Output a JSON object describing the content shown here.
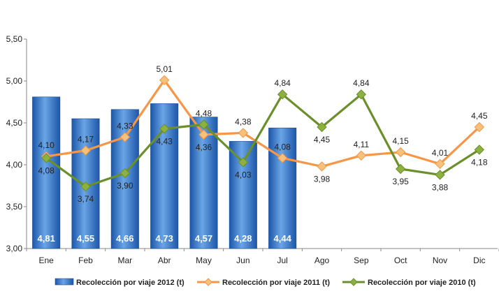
{
  "colors": {
    "bar_light": "#6aa5e6",
    "bar_dark": "#1c56a8",
    "bar_border": "#1a4d96",
    "series_2011": "#f79646",
    "series_2011_marker": "#f6c27b",
    "series_2010": "#6b8f2a",
    "series_2010_marker": "#8db13f",
    "axis": "#8a8a8a",
    "text": "#222222"
  },
  "chart_data": {
    "type": "bar",
    "categories": [
      "Ene",
      "Feb",
      "Mar",
      "Abr",
      "May",
      "Jun",
      "Jul",
      "Ago",
      "Sep",
      "Oct",
      "Nov",
      "Dic"
    ],
    "ylim": [
      3.0,
      5.5
    ],
    "yticks": [
      "3,00",
      "3,50",
      "4,00",
      "4,50",
      "5,00",
      "5,50"
    ],
    "ytick_values": [
      3.0,
      3.5,
      4.0,
      4.5,
      5.0,
      5.5
    ],
    "grid": false,
    "legend_position": "bottom",
    "series": [
      {
        "name": "Recolección por viaje 2012 (t)",
        "type": "bar",
        "values": [
          4.81,
          4.55,
          4.66,
          4.73,
          4.57,
          4.28,
          4.44,
          null,
          null,
          null,
          null,
          null
        ],
        "labels": [
          "4,81",
          "4,55",
          "4,66",
          "4,73",
          "4,57",
          "4,28",
          "4,44",
          "",
          "",
          "",
          "",
          ""
        ]
      },
      {
        "name": "Recolección por viaje 2011 (t)",
        "type": "line",
        "values": [
          4.1,
          4.17,
          4.33,
          5.01,
          4.36,
          4.38,
          4.08,
          3.98,
          4.11,
          4.15,
          4.01,
          4.45
        ],
        "labels": [
          "4,10",
          "4,17",
          "4,33",
          "5,01",
          "4,36",
          "4,38",
          "4,08",
          "3,98",
          "4,11",
          "4,15",
          "4,01",
          "4,45"
        ],
        "label_pos": [
          "above",
          "above",
          "above",
          "above",
          "below",
          "above",
          "above",
          "below",
          "above",
          "above",
          "above",
          "above"
        ]
      },
      {
        "name": "Recolección por viaje 2010 (t)",
        "type": "line",
        "values": [
          4.08,
          3.74,
          3.9,
          4.43,
          4.48,
          4.03,
          4.84,
          4.45,
          4.84,
          3.95,
          3.88,
          4.18
        ],
        "labels": [
          "4,08",
          "3,74",
          "3,90",
          "4,43",
          "4,48",
          "4,03",
          "4,84",
          "4,45",
          "4,84",
          "3,95",
          "3,88",
          "4,18"
        ],
        "label_pos": [
          "below",
          "below",
          "below",
          "below",
          "above",
          "below",
          "above",
          "below",
          "above",
          "below",
          "below",
          "below"
        ]
      }
    ]
  }
}
